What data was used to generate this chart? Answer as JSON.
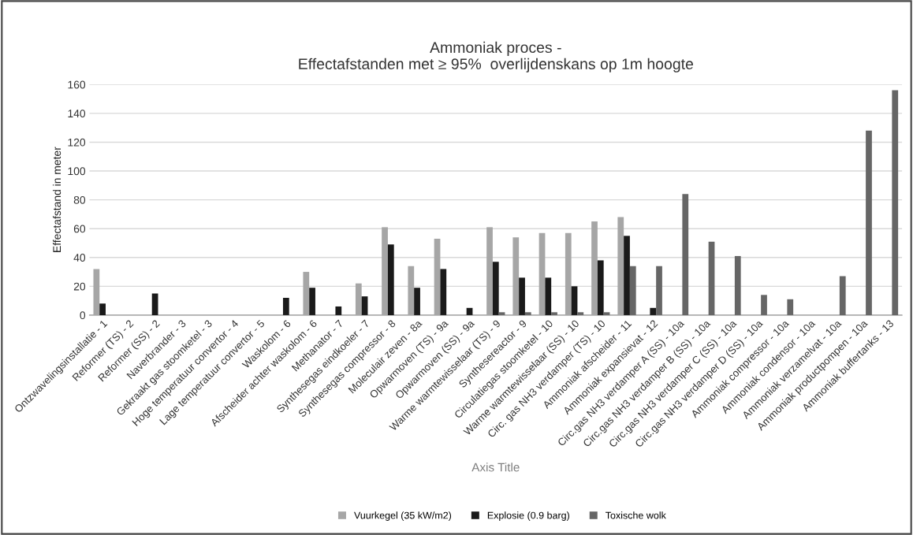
{
  "chart_data": {
    "type": "bar",
    "title": "Ammoniak proces -\nEffectafstanden met ≥ 95%  overlijdenskans op 1m hoogte",
    "xlabel": "Axis Title",
    "ylabel": "Effectafstand in meter",
    "categories": [
      "Ontzwavelingsinstallatie - 1",
      "Reformer (TS) - 2",
      "Reformer (SS) - 2",
      "Naverbrander - 3",
      "Gekraakt gas stoomketel - 3",
      "Hoge temperatuur convertor - 4",
      "Lage temperatuur convertor - 5",
      "Waskolom - 6",
      "Afscheider achter waskolom - 6",
      "Methanator - 7",
      "Synthesegas eindkoeler - 7",
      "Synthesegas compressor - 8",
      "Moleculair zeven - 8a",
      "Opwarmoven (TS) - 9a",
      "Opwarmoven (SS) - 9a",
      "Warme warmtewisselaar (TS) - 9",
      "Synthesereactor - 9",
      "Circulatiegas stoomketel - 10",
      "Warme warmtewisselaar (SS) - 10",
      "Circ. gas NH3 verdamper (TS) - 10",
      "Ammoniak afscheider - 11",
      "Ammoniak expansievat - 12",
      "Circ.gas NH3 verdamper A (SS) - 10a",
      "Circ.gas NH3 verdamper B (SS) - 10a",
      "Circ.gas NH3 verdamper C (SS) - 10a",
      "Circ.gas NH3 verdamper D (SS) - 10a",
      "Ammoniak compressor - 10a",
      "Ammoniak condensor - 10a",
      "Ammoniak verzamelvat - 10a",
      "Ammoniak productpompen - 10a",
      "Ammoniak buffertanks - 13"
    ],
    "series": [
      {
        "name": "Vuurkegel (35 kW/m2)",
        "color": "#a6a6a6",
        "values": [
          32,
          null,
          null,
          null,
          null,
          null,
          null,
          null,
          30,
          null,
          22,
          61,
          34,
          53,
          null,
          61,
          54,
          57,
          57,
          65,
          68,
          null,
          null,
          null,
          null,
          null,
          null,
          null,
          null,
          null,
          null
        ]
      },
      {
        "name": "Explosie (0.9 barg)",
        "color": "#1a1a1a",
        "values": [
          8,
          null,
          15,
          null,
          null,
          null,
          null,
          12,
          19,
          6,
          13,
          49,
          19,
          32,
          5,
          37,
          26,
          26,
          20,
          38,
          55,
          5,
          null,
          null,
          null,
          null,
          null,
          null,
          null,
          null,
          null
        ]
      },
      {
        "name": "Toxische wolk",
        "color": "#666666",
        "values": [
          null,
          null,
          null,
          null,
          null,
          null,
          null,
          null,
          null,
          null,
          null,
          null,
          null,
          null,
          null,
          2,
          2,
          2,
          2,
          2,
          34,
          34,
          84,
          51,
          41,
          14,
          11,
          null,
          27,
          128,
          156
        ]
      }
    ],
    "ylim": [
      0,
      160
    ],
    "yticks": [
      0,
      20,
      40,
      60,
      80,
      100,
      120,
      140,
      160
    ],
    "grid": "y",
    "legend": "bottom"
  }
}
